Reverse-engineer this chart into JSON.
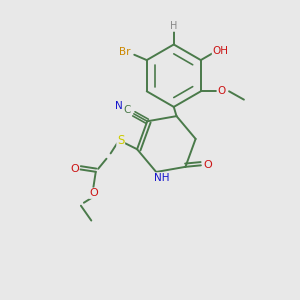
{
  "background_color": "#e8e8e8",
  "figsize": [
    3.0,
    3.0
  ],
  "dpi": 100,
  "colors": {
    "bond": "#4a7a4a",
    "C": "#4a7a4a",
    "N": "#1515cc",
    "O": "#cc1515",
    "S": "#cccc00",
    "Br": "#cc8800",
    "H": "#888888"
  },
  "bond_lw": 1.4
}
